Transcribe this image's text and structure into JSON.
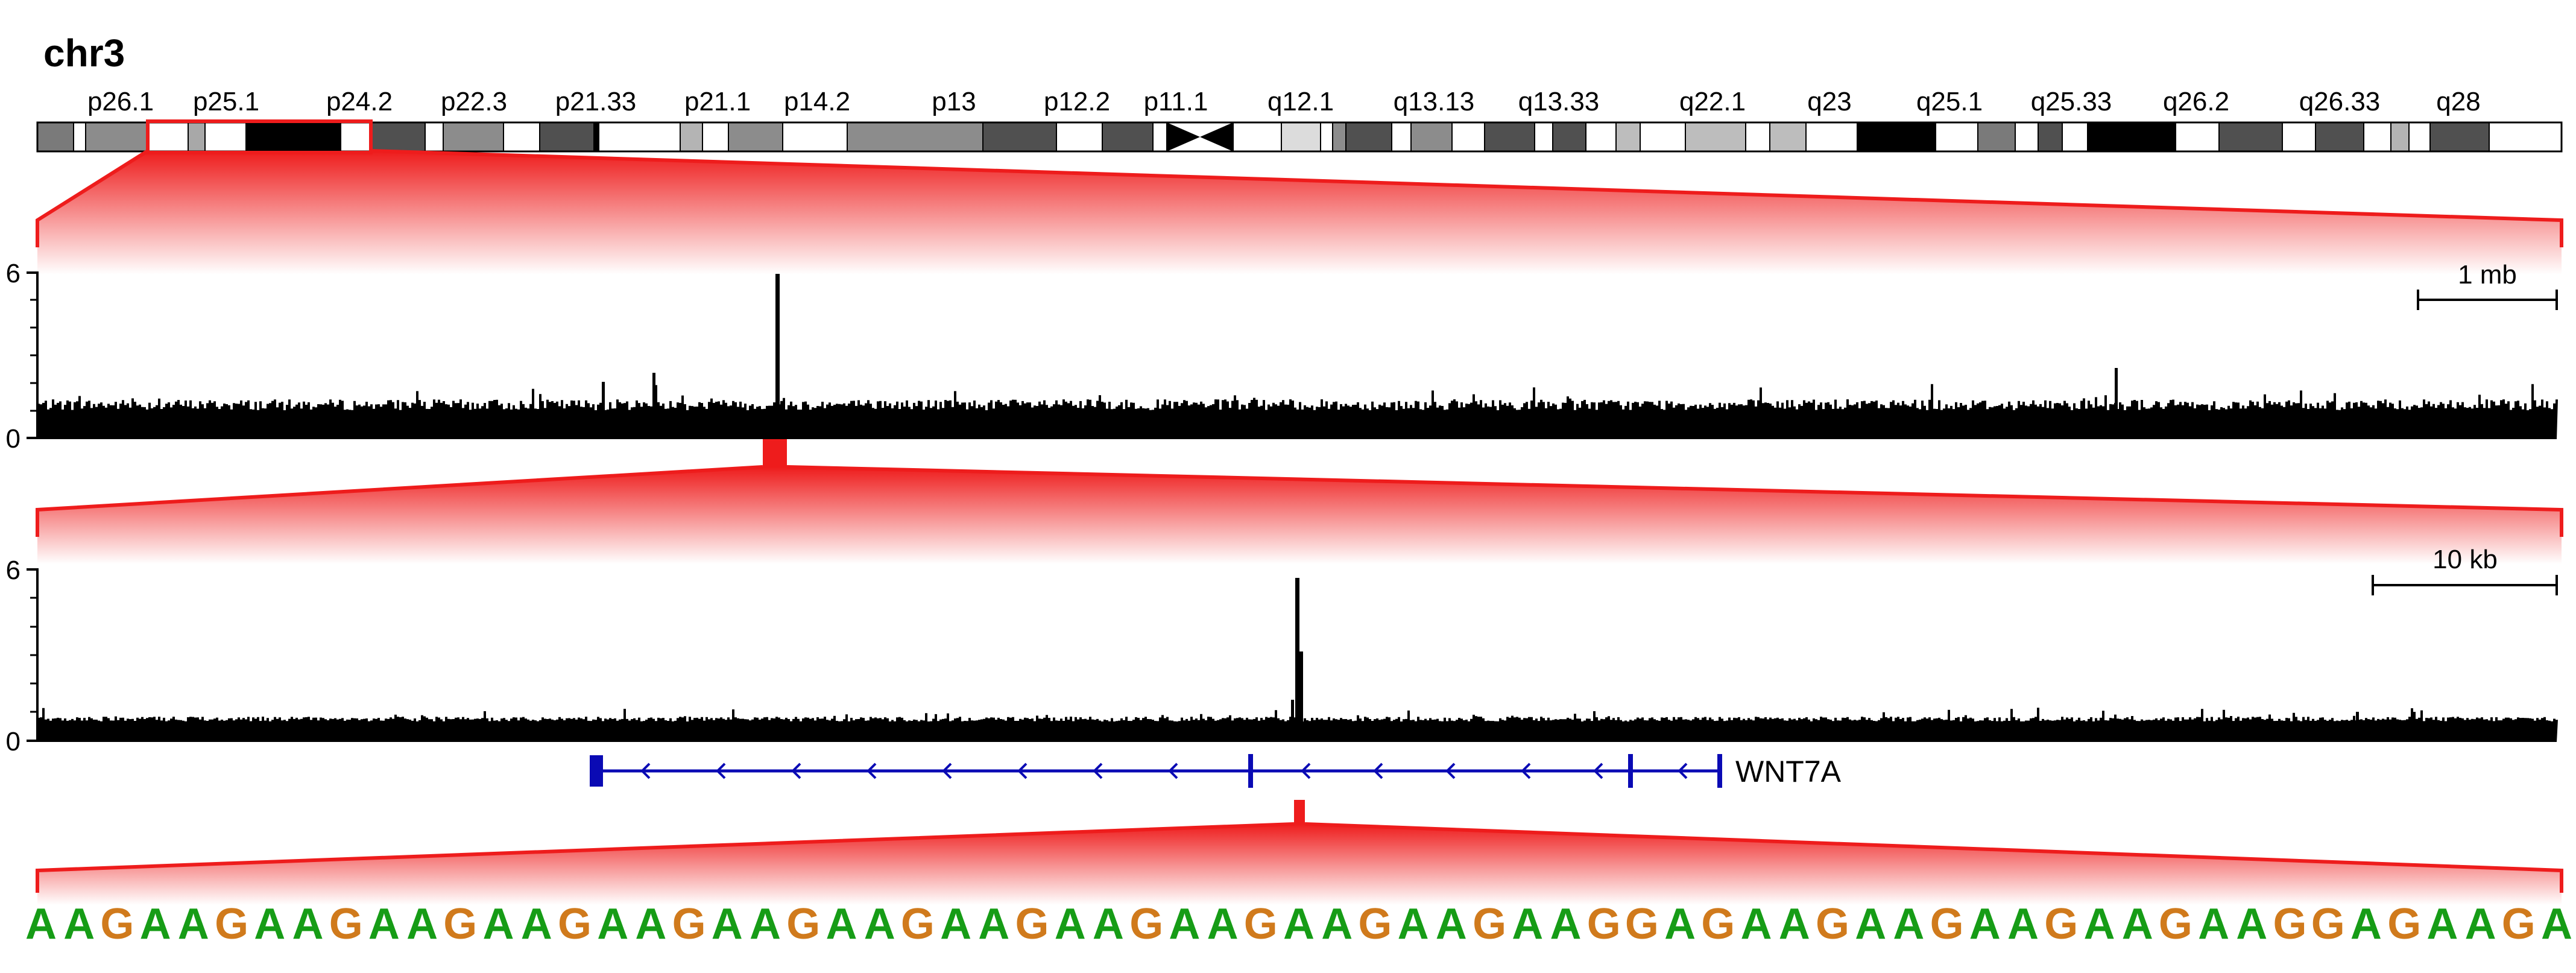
{
  "chromosome": {
    "title": "chr3",
    "band_labels": [
      "p26.1",
      "p25.1",
      "p24.2",
      "p22.3",
      "p21.33",
      "p21.1",
      "p14.2",
      "p13",
      "p12.2",
      "p11.1",
      "q12.1",
      "q13.13",
      "q13.33",
      "q22.1",
      "q23",
      "q25.1",
      "q25.33",
      "q26.2",
      "q26.33",
      "q28"
    ],
    "selected_region": "p25.1–p24.2"
  },
  "track1": {
    "y_max_label": "6",
    "y_min_label": "0",
    "scale_label": "1 mb",
    "colors": {
      "signal": "#000000"
    }
  },
  "track2": {
    "y_max_label": "6",
    "y_min_label": "0",
    "scale_label": "10 kb",
    "colors": {
      "signal": "#000000"
    }
  },
  "gene": {
    "name": "WNT7A",
    "strand": "-",
    "color": "#0a0ab4"
  },
  "sequence": {
    "text": "AAGAAGAAGAAGAAGAAGAAGAAGAAGAAGAAGAAGAAGAAGGAGAAGAAGAAGAAGAAGGAGAAGA",
    "colors": {
      "A": "#169c16",
      "G": "#d07a1c"
    }
  },
  "colors": {
    "zoom": "#ee1c1c",
    "band_border": "#000000"
  }
}
